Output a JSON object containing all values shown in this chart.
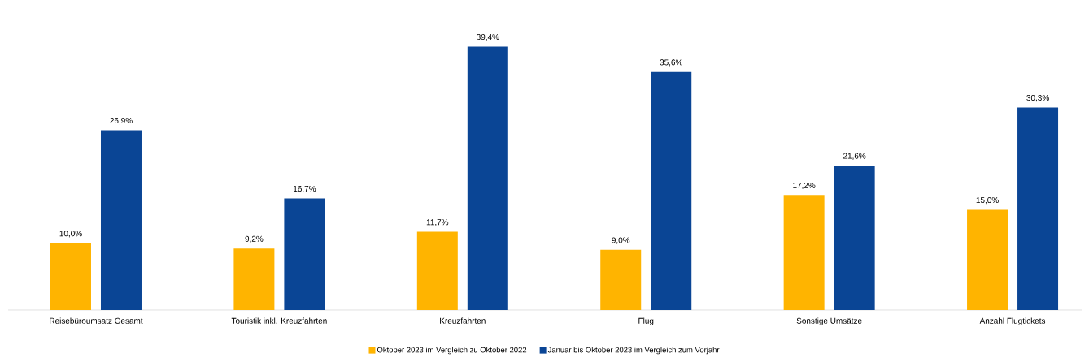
{
  "chart_data": {
    "type": "bar",
    "categories": [
      "Reisebüroumsatz Gesamt",
      "Touristik inkl. Kreuzfahrten",
      "Kreuzfahrten",
      "Flug",
      "Sonstige Umsätze",
      "Anzahl Flugtickets"
    ],
    "series": [
      {
        "name": "Oktober 2023 im Vergleich zu Oktober 2022",
        "color": "#ffb400",
        "values": [
          10.0,
          9.2,
          11.7,
          9.0,
          17.2,
          15.0
        ],
        "value_labels": [
          "10,0%",
          "9,2%",
          "11,7%",
          "9,0%",
          "17,2%",
          "15,0%"
        ]
      },
      {
        "name": "Januar bis Oktober 2023 im Vergleich zum Vorjahr",
        "color": "#0a4595",
        "values": [
          26.9,
          16.7,
          39.4,
          35.6,
          21.6,
          30.3
        ],
        "value_labels": [
          "26,9%",
          "16,7%",
          "39,4%",
          "35,6%",
          "21,6%",
          "30,3%"
        ]
      }
    ],
    "legend": "bottom",
    "grid": false
  }
}
